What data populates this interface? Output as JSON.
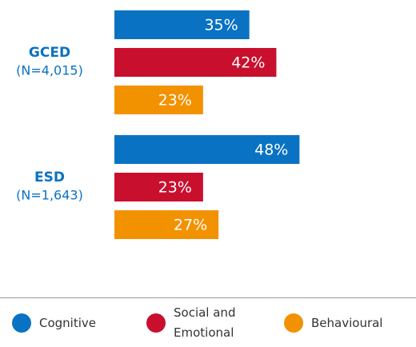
{
  "chart_data": {
    "type": "bar",
    "orientation": "horizontal",
    "categories": [
      "GCED",
      "ESD"
    ],
    "category_subtitles": [
      "(N=4,015)",
      "(N=1,643)"
    ],
    "series": [
      {
        "name": "Cognitive",
        "color": "#0a72c2",
        "values": [
          35,
          48
        ],
        "value_labels": [
          "35%",
          "48%"
        ]
      },
      {
        "name": "Social and Emotional",
        "color": "#c8102e",
        "values": [
          42,
          23
        ],
        "value_labels": [
          "42%",
          "23%"
        ]
      },
      {
        "name": "Behavioural",
        "color": "#f39200",
        "values": [
          23,
          27
        ],
        "value_labels": [
          "23%",
          "27%"
        ]
      }
    ],
    "legend": "bottom"
  }
}
